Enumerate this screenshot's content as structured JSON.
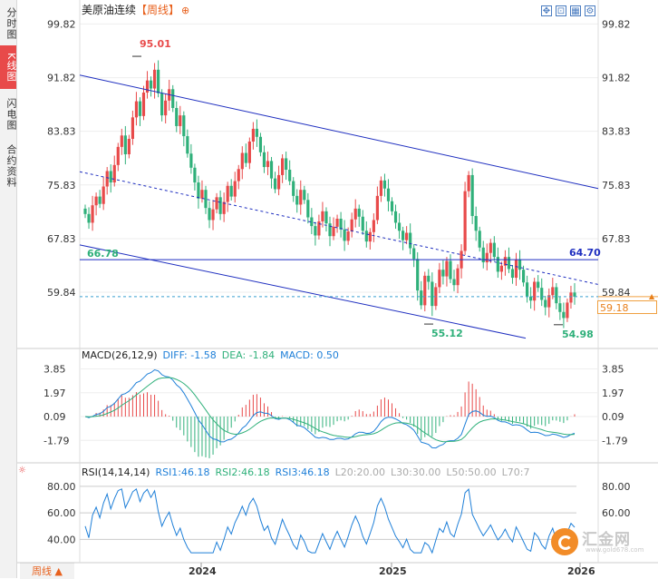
{
  "sidebar": {
    "tabs": [
      {
        "label": "分时图",
        "active": false
      },
      {
        "label": "K线图",
        "active": true
      },
      {
        "label": "闪电图",
        "active": false
      },
      {
        "label": "合约资料",
        "active": false
      }
    ]
  },
  "header": {
    "title": "美原油连续",
    "period": "【周线】",
    "add_icon": "⊕"
  },
  "toolbar": {
    "icons": [
      "expand-icon",
      "fit-icon",
      "grid-icon",
      "settings-icon"
    ]
  },
  "colors": {
    "up": "#e84a4a",
    "down": "#2fb07a",
    "channel": "#1f2fc0",
    "diff": "#1e7fd8",
    "dea": "#2fb07a",
    "rsi": "#1e7fd8"
  },
  "price_axis": {
    "ticks": [
      "99.82",
      "91.82",
      "83.83",
      "75.83",
      "67.83",
      "59.84"
    ]
  },
  "macd_axis": {
    "ticks": [
      "3.85",
      "1.97",
      "0.09",
      "-1.79"
    ]
  },
  "rsi_axis": {
    "ticks": [
      "80.00",
      "60.00",
      "40.00"
    ]
  },
  "time_axis": {
    "ticks": [
      "2024",
      "2025",
      "2026"
    ]
  },
  "annotations": {
    "high": "95.01",
    "low1": "55.12",
    "low2": "54.98",
    "left_level": "66.78",
    "resistance": "64.70",
    "current_price": "59.18"
  },
  "macd_legend": {
    "title": "MACD(26,12,9)",
    "diff": "DIFF: -1.58",
    "dea": "DEA: -1.84",
    "macd": "MACD: 0.50"
  },
  "rsi_legend": {
    "title": "RSI(14,14,14)",
    "rsi1": "RSI1:46.18",
    "rsi2": "RSI2:46.18",
    "rsi3": "RSI3:46.18",
    "l20": "L20:20.00",
    "l30": "L30:30.00",
    "l50": "L50:50.00",
    "l70": "L70:7"
  },
  "period_button": "周线 ▲",
  "watermark": {
    "text": "汇金网",
    "url": "www.gold678.com"
  },
  "chart_data": {
    "type": "candlestick",
    "title": "美原油连续【周线】",
    "ylim": [
      52.0,
      101.5
    ],
    "x_ticks": [
      "2024",
      "2025",
      "2026"
    ],
    "key_levels": {
      "high": 95.01,
      "low1": 55.12,
      "low2": 54.98,
      "horizontal": 64.7,
      "left_level": 66.78,
      "last": 59.18
    },
    "closes": [
      71.5,
      70.2,
      72.8,
      74.1,
      73.0,
      75.6,
      77.9,
      76.2,
      78.8,
      81.5,
      83.2,
      80.4,
      82.7,
      85.9,
      88.3,
      86.1,
      89.6,
      91.4,
      90.2,
      93.0,
      89.5,
      86.2,
      88.4,
      90.1,
      87.3,
      84.6,
      86.2,
      83.1,
      80.5,
      78.4,
      76.2,
      73.8,
      75.1,
      72.4,
      70.6,
      72.2,
      74.0,
      71.5,
      73.3,
      75.7,
      74.1,
      76.4,
      78.2,
      80.6,
      79.1,
      82.3,
      84.2,
      83.0,
      80.7,
      78.5,
      79.4,
      76.8,
      75.2,
      77.3,
      79.8,
      78.1,
      76.4,
      74.2,
      72.9,
      75.1,
      73.6,
      71.0,
      69.7,
      68.3,
      70.4,
      71.9,
      70.1,
      68.2,
      69.6,
      70.8,
      69.2,
      67.5,
      68.9,
      70.7,
      72.3,
      71.1,
      69.0,
      67.4,
      68.8,
      70.6,
      74.2,
      76.5,
      75.3,
      73.4,
      71.9,
      70.2,
      69.0,
      67.6,
      68.7,
      66.4,
      64.8,
      60.1,
      57.9,
      62.3,
      61.4,
      57.8,
      60.6,
      63.2,
      62.2,
      64.5,
      61.8,
      60.9,
      63.4,
      66.0,
      74.9,
      77.3,
      71.2,
      69.0,
      66.5,
      64.3,
      65.7,
      67.2,
      65.1,
      62.9,
      63.8,
      65.1,
      63.3,
      62.0,
      64.7,
      63.2,
      61.3,
      59.2,
      58.6,
      61.4,
      60.5,
      58.7,
      57.6,
      59.4,
      60.6,
      58.2,
      56.9,
      56.0,
      58.3,
      59.8,
      59.18
    ]
  }
}
